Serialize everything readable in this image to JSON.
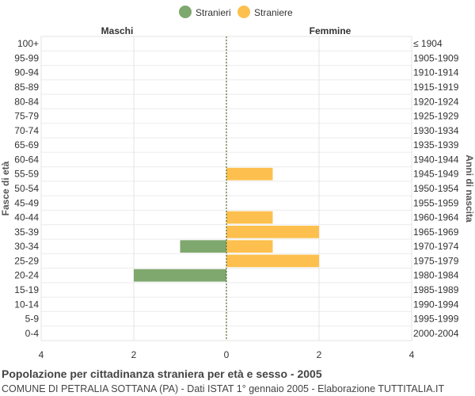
{
  "chart_data": {
    "type": "bar",
    "orientation": "horizontal-population-pyramid",
    "title": "Popolazione per cittadinanza straniera per età e sesso - 2005",
    "subtitle": "COMUNE DI PETRALIA SOTTANA (PA) - Dati ISTAT 1° gennaio 2005 - Elaborazione TUTTITALIA.IT",
    "left_header": "Maschi",
    "right_header": "Femmine",
    "ylabel_left": "Fasce di età",
    "ylabel_right": "Anni di nascita",
    "age_groups": [
      "100+",
      "95-99",
      "90-94",
      "85-89",
      "80-84",
      "75-79",
      "70-74",
      "65-69",
      "60-64",
      "55-59",
      "50-54",
      "45-49",
      "40-44",
      "35-39",
      "30-34",
      "25-29",
      "20-24",
      "15-19",
      "10-14",
      "5-9",
      "0-4"
    ],
    "birth_years": [
      "≤ 1904",
      "1905-1909",
      "1910-1914",
      "1915-1919",
      "1920-1924",
      "1925-1929",
      "1930-1934",
      "1935-1939",
      "1940-1944",
      "1945-1949",
      "1950-1954",
      "1955-1959",
      "1960-1964",
      "1965-1969",
      "1970-1974",
      "1975-1979",
      "1980-1984",
      "1985-1989",
      "1990-1994",
      "1995-1999",
      "2000-2004"
    ],
    "x_ticks": [
      "4",
      "2",
      "0",
      "2",
      "4"
    ],
    "xlim": [
      -4,
      4
    ],
    "legend_position": "top-center",
    "grid": true,
    "series": [
      {
        "name": "Stranieri",
        "side": "left",
        "color": "#7fa86e",
        "values": [
          0,
          0,
          0,
          0,
          0,
          0,
          0,
          0,
          0,
          0,
          0,
          0,
          0,
          0,
          1,
          0,
          2,
          0,
          0,
          0,
          0
        ]
      },
      {
        "name": "Straniere",
        "side": "right",
        "color": "#fdc04e",
        "values": [
          0,
          0,
          0,
          0,
          0,
          0,
          0,
          0,
          0,
          1,
          0,
          0,
          1,
          2,
          1,
          2,
          0,
          0,
          0,
          0,
          0
        ]
      }
    ]
  }
}
